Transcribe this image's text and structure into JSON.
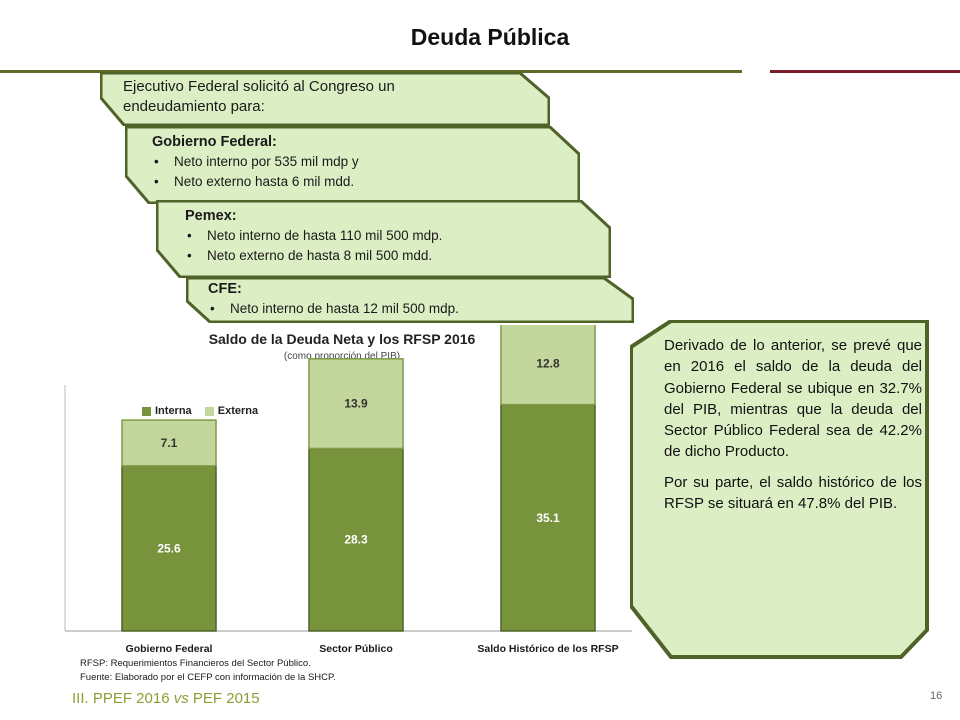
{
  "title": "Deuda Pública",
  "banners": [
    {
      "head_lines": [
        "Ejecutivo Federal solicitó al Congreso un",
        "endeudamiento para:"
      ],
      "items": []
    },
    {
      "head": "Gobierno Federal:",
      "items": [
        "Neto interno por 535 mil mdp y",
        "Neto externo hasta 6 mil mdd."
      ]
    },
    {
      "head": "Pemex:",
      "items": [
        "Neto interno de hasta 110 mil 500 mdp.",
        "Neto externo de hasta 8 mil 500 mdd."
      ]
    },
    {
      "head": "CFE:",
      "items": [
        "Neto interno de hasta 12 mil 500 mdp."
      ]
    }
  ],
  "chart_data": {
    "type": "bar",
    "stacked": true,
    "title": "Saldo de la Deuda Neta y los RFSP 2016",
    "subtitle": "(como proporción del PIB)",
    "categories": [
      "Gobierno Federal",
      "Sector Público",
      "Saldo Histórico de los RFSP"
    ],
    "series": [
      {
        "name": "Interna",
        "values": [
          25.6,
          28.3,
          35.1
        ],
        "color": "#77933c"
      },
      {
        "name": "Externa",
        "values": [
          7.1,
          13.9,
          12.8
        ],
        "color": "#c3d69b"
      }
    ],
    "ylim": [
      0,
      50
    ],
    "grid": false,
    "legend": "top-left",
    "footnotes": [
      "RFSP: Requerimientos Financieros del Sector Público.",
      "Fuente: Elaborado por el CEFP con información de la SHCP."
    ]
  },
  "callout": {
    "paragraphs": [
      "Derivado de lo anterior, se prevé que en 2016 el saldo de la deuda del Gobierno Federal se ubique en 32.7% del PIB, mientras que la deuda del Sector Público Federal sea de 42.2% de dicho Producto.",
      "Por su parte, el saldo histórico de los RFSP se situará en 47.8% del PIB."
    ]
  },
  "footer": {
    "section": "III. PPEF 2016",
    "vs": "vs",
    "rest": "PEF 2015",
    "page": "16"
  },
  "colors": {
    "banner_fill": "#dcefc4",
    "banner_stroke": "#4f6228",
    "accent_green": "#8aa032",
    "accent_red": "#7a1f2b"
  }
}
